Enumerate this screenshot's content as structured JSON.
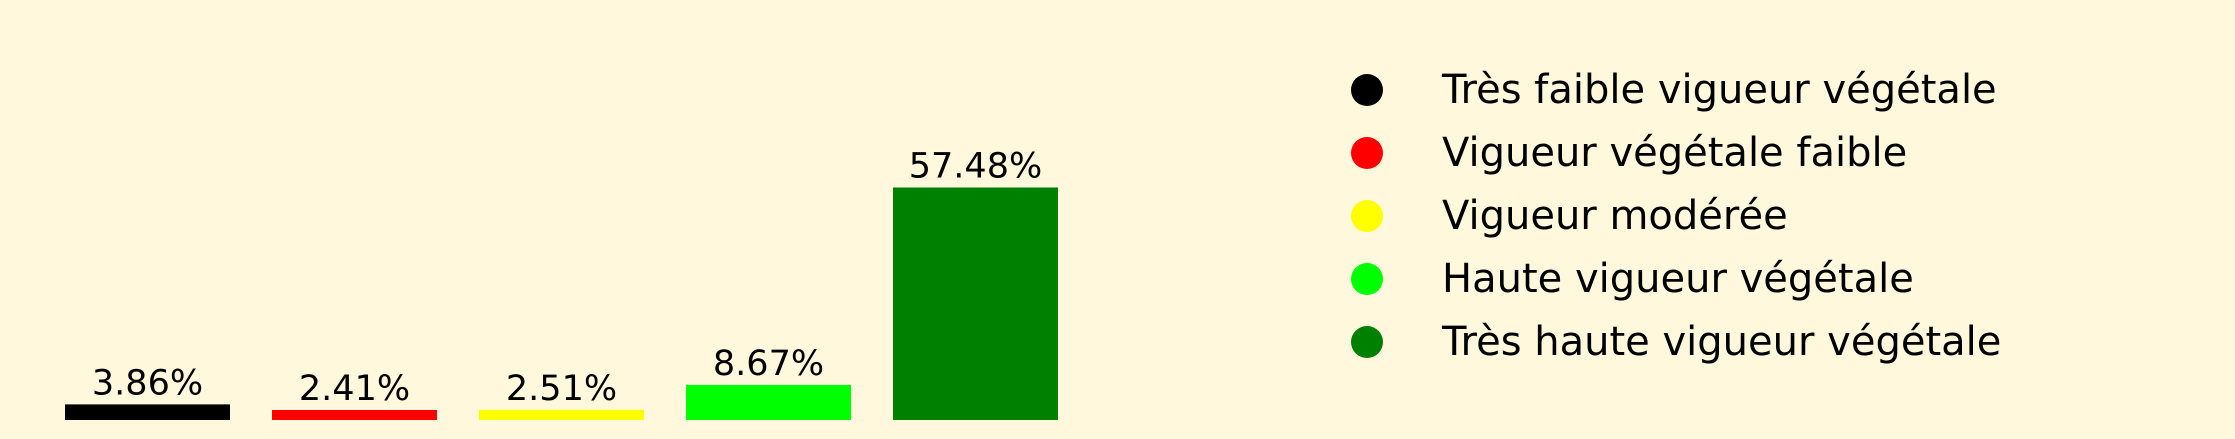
{
  "chart_data": {
    "type": "bar",
    "title": "",
    "xlabel": "",
    "ylabel": "",
    "ylim": [
      0,
      62
    ],
    "grid": false,
    "legend_placement": "right",
    "categories": [
      "Très faible vigueur végétale",
      "Vigueur végétale faible",
      "Vigueur modérée",
      "Haute vigueur végétale",
      "Très haute vigueur végétale"
    ],
    "values": [
      3.86,
      2.41,
      2.51,
      8.67,
      57.48
    ],
    "data_labels": [
      "3.86%",
      "2.41%",
      "2.51%",
      "8.67%",
      "57.48%"
    ],
    "colors": [
      "#000000",
      "#ff0000",
      "#ffff00",
      "#00ff00",
      "#008000"
    ],
    "legend": [
      {
        "label": "Très faible vigueur végétale",
        "color": "#000000",
        "icon": "circle-marker-icon"
      },
      {
        "label": "Vigueur végétale faible",
        "color": "#ff0000",
        "icon": "circle-marker-icon"
      },
      {
        "label": "Vigueur modérée",
        "color": "#ffff00",
        "icon": "circle-marker-icon"
      },
      {
        "label": "Haute vigueur végétale",
        "color": "#00ff00",
        "icon": "circle-marker-icon"
      },
      {
        "label": "Très haute vigueur végétale",
        "color": "#008000",
        "icon": "circle-marker-icon"
      }
    ]
  },
  "colors": {
    "background": "#fff8dc",
    "text": "#000000"
  }
}
